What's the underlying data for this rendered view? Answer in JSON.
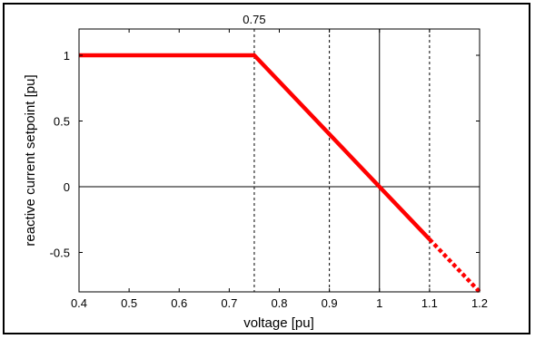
{
  "chart_data": {
    "type": "line",
    "title": "",
    "xlabel": "voltage [pu]",
    "ylabel": "reactive current setpoint [pu]",
    "xlim": [
      0.4,
      1.2
    ],
    "ylim": [
      -0.8,
      1.2
    ],
    "xticks": [
      0.4,
      0.5,
      0.6,
      0.7,
      0.8,
      0.9,
      1.0,
      1.1,
      1.2
    ],
    "xtick_labels": [
      "0.4",
      "0.5",
      "0.6",
      "0.7",
      "0.8",
      "0.9",
      "1",
      "1.1",
      "1.2"
    ],
    "yticks": [
      -0.5,
      0,
      0.5,
      1
    ],
    "ytick_labels": [
      "-0.5",
      "0",
      "0.5",
      "1"
    ],
    "top_annotation": "0.75",
    "grid": false,
    "vertical_reference_lines": [
      {
        "x": 0.75,
        "style": "dashed"
      },
      {
        "x": 0.9,
        "style": "dashed"
      },
      {
        "x": 1.0,
        "style": "solid"
      },
      {
        "x": 1.1,
        "style": "dashed"
      }
    ],
    "horizontal_reference_lines": [
      {
        "y": 0,
        "style": "solid"
      }
    ],
    "series": [
      {
        "style": "solid",
        "color": "#ff0000",
        "x": [
          0.4,
          0.75,
          1.1
        ],
        "y": [
          1,
          1,
          -0.4
        ]
      },
      {
        "style": "dotted",
        "color": "#ff0000",
        "x": [
          1.1,
          1.2
        ],
        "y": [
          -0.4,
          -0.8
        ]
      }
    ]
  }
}
